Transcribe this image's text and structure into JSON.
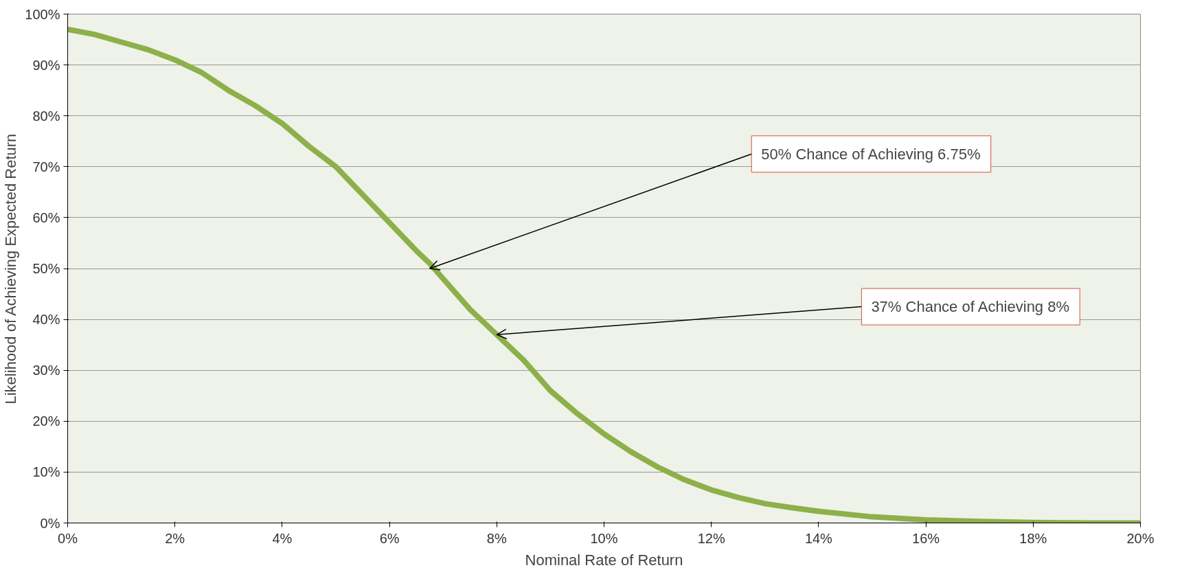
{
  "chart_data": {
    "type": "line",
    "xlabel": "Nominal Rate of Return",
    "ylabel": "Likelihood of Achieving Expected Return",
    "x": [
      0,
      0.5,
      1,
      1.5,
      2,
      2.5,
      3,
      3.5,
      4,
      4.5,
      5,
      5.5,
      6,
      6.5,
      6.75,
      7,
      7.5,
      8,
      8.5,
      9,
      9.5,
      10,
      10.5,
      11,
      11.5,
      12,
      12.5,
      13,
      13.5,
      14,
      15,
      16,
      17,
      18,
      19,
      20
    ],
    "series": [
      {
        "color": "#8db04a",
        "values": [
          97,
          96,
          94.5,
          93,
          91,
          88.5,
          85,
          82,
          78.5,
          74,
          70,
          64.5,
          59,
          53.5,
          51,
          48,
          42,
          37,
          32,
          26,
          21.5,
          17.5,
          14,
          11,
          8.5,
          6.5,
          5,
          3.8,
          3,
          2.3,
          1.2,
          0.6,
          0.3,
          0.1,
          0,
          0
        ]
      }
    ],
    "xlim": [
      0,
      20
    ],
    "ylim": [
      0,
      100
    ],
    "xticks": [
      {
        "value": 0,
        "label": "0%"
      },
      {
        "value": 2,
        "label": "2%"
      },
      {
        "value": 4,
        "label": "4%"
      },
      {
        "value": 6,
        "label": "6%"
      },
      {
        "value": 8,
        "label": "8%"
      },
      {
        "value": 10,
        "label": "10%"
      },
      {
        "value": 12,
        "label": "12%"
      },
      {
        "value": 14,
        "label": "14%"
      },
      {
        "value": 16,
        "label": "16%"
      },
      {
        "value": 18,
        "label": "18%"
      },
      {
        "value": 20,
        "label": "20%"
      }
    ],
    "yticks": [
      {
        "value": 0,
        "label": "0%"
      },
      {
        "value": 10,
        "label": "10%"
      },
      {
        "value": 20,
        "label": "20%"
      },
      {
        "value": 30,
        "label": "30%"
      },
      {
        "value": 40,
        "label": "40%"
      },
      {
        "value": 50,
        "label": "50%"
      },
      {
        "value": 60,
        "label": "60%"
      },
      {
        "value": 70,
        "label": "70%"
      },
      {
        "value": 80,
        "label": "80%"
      },
      {
        "value": 90,
        "label": "90%"
      },
      {
        "value": 100,
        "label": "100%"
      }
    ],
    "grid": "y",
    "marker": "none",
    "line_style": "solid",
    "annotations": [
      {
        "text": "50% Chance of Achieving 6.75%",
        "x": 6.75,
        "y": 50
      },
      {
        "text": "37% Chance of Achieving 8%",
        "x": 8,
        "y": 37
      }
    ]
  }
}
